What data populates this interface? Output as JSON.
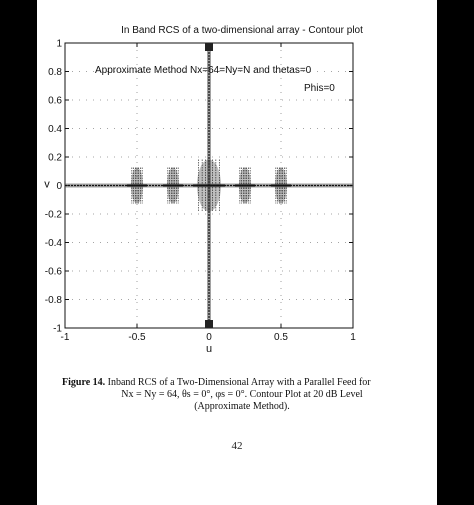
{
  "chart_data": {
    "type": "contour",
    "title": "In Band RCS of a two-dimensional array - Contour plot",
    "xlabel": "u",
    "ylabel": "v",
    "xlim": [
      -1,
      1
    ],
    "ylim": [
      -1,
      1
    ],
    "xticks": [
      "-1",
      "-0.5",
      "0",
      "0.5",
      "1"
    ],
    "yticks": [
      "1",
      "0.8",
      "0.6",
      "0.4",
      "0.2",
      "0",
      "-0.2",
      "-0.4",
      "-0.6",
      "-0.8",
      "-1"
    ],
    "grid": "dotted",
    "annotations": [
      "Approximate Method Nx=64=Ny=N and thetas=0",
      "Phis=0"
    ],
    "lobe_positions_u": [
      -0.5,
      -0.25,
      0,
      0.25,
      0.5
    ],
    "level_db": 20
  },
  "caption": {
    "label": "Figure 14.",
    "line1": "Inband RCS of a Two-Dimensional Array with a Parallel Feed for",
    "line2": "Nx = Ny = 64, θs = 0°, φs = 0°. Contour Plot at 20 dB Level",
    "line3": "(Approximate Method)."
  },
  "page_number": "42"
}
